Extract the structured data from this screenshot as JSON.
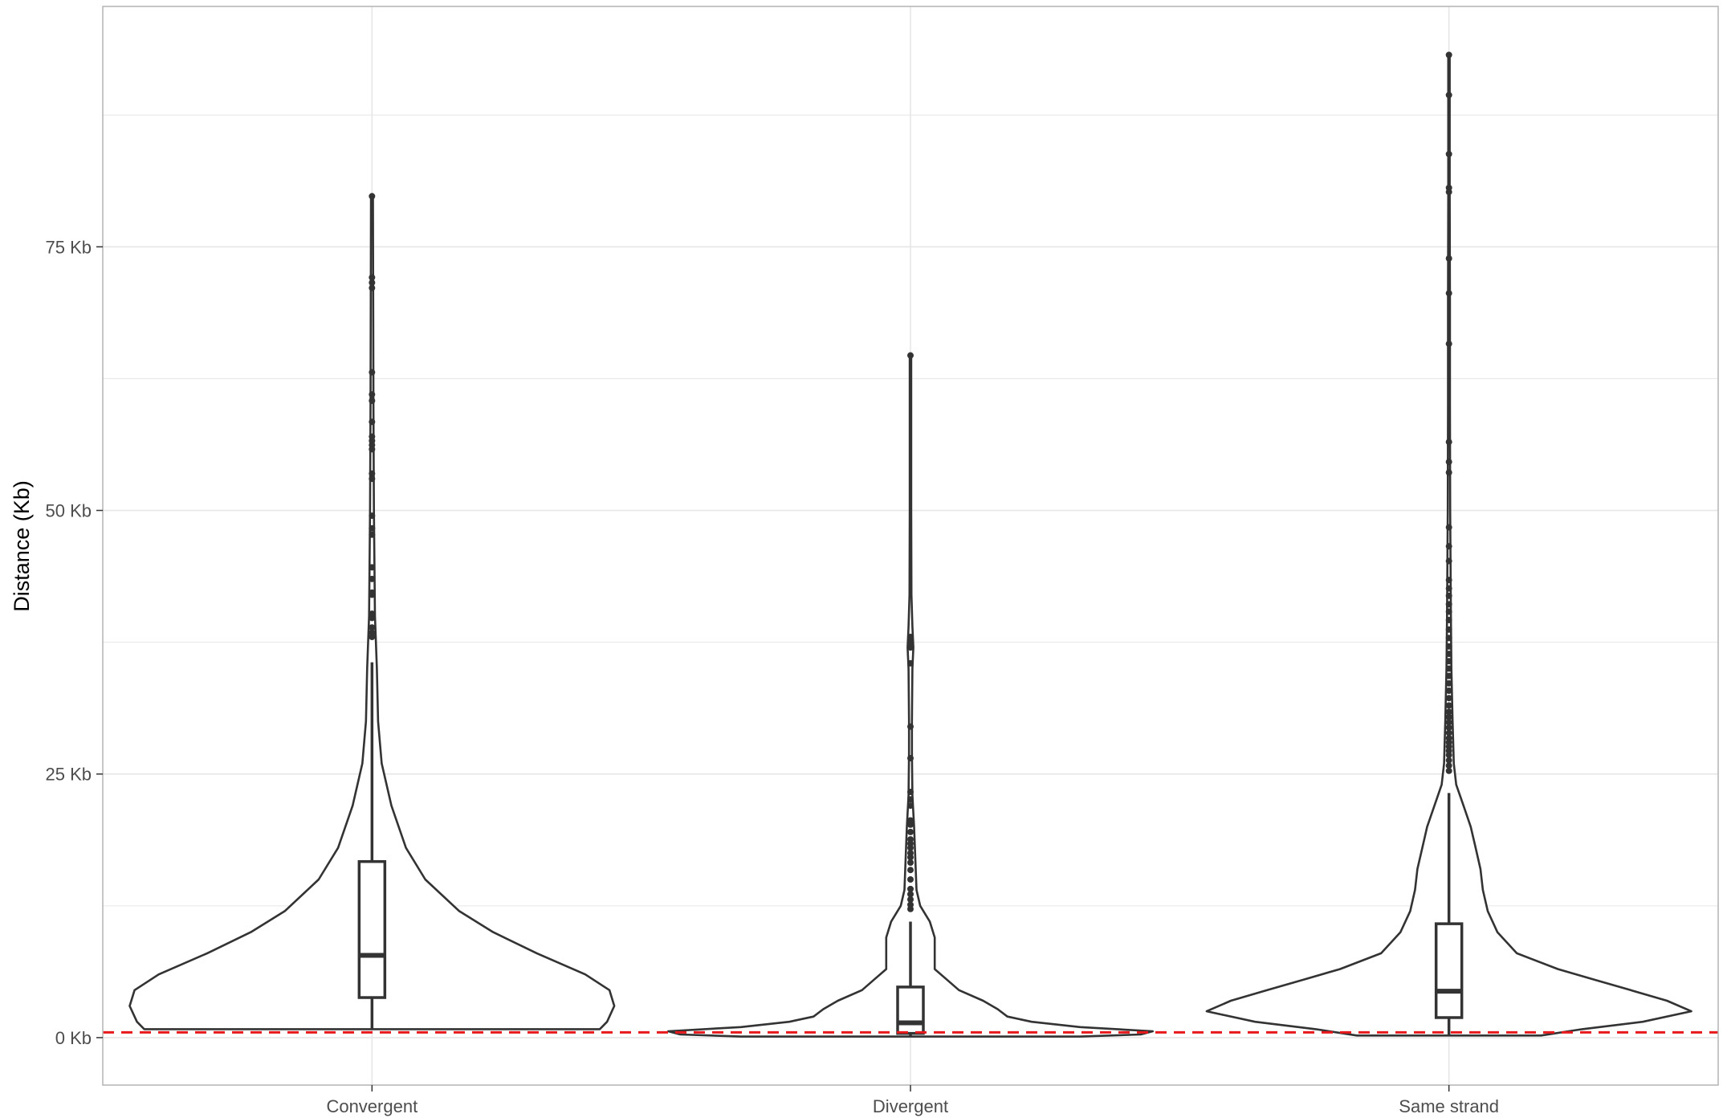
{
  "chart_data": {
    "type": "violin",
    "title": "",
    "xlabel": "",
    "ylabel": "Distance (Kb)",
    "ylim": [
      -4.5,
      97.8
    ],
    "y_ticks": [
      0,
      25,
      50,
      75
    ],
    "y_tick_labels": [
      "0 Kb",
      "25 Kb",
      "50 Kb",
      "75 Kb"
    ],
    "categories": [
      "Convergent",
      "Divergent",
      "Same strand"
    ],
    "grid": true,
    "legend": "none",
    "reference_line": {
      "y": 0.5,
      "color": "#e8191c",
      "style": "dashed"
    },
    "colors": {
      "outline": "#333333",
      "grid": "#e6e6e6",
      "panel_border": "#b3b3b3"
    },
    "groups": [
      {
        "name": "Convergent",
        "box": {
          "q1": 3.8,
          "median": 7.8,
          "q3": 16.7,
          "whisker_low": 0.8,
          "whisker_high": 35.6
        },
        "violin_range": [
          0.8,
          79.8
        ],
        "density": [
          [
            0.8,
            0.94
          ],
          [
            1.5,
            0.97
          ],
          [
            3,
            1.0
          ],
          [
            4.5,
            0.98
          ],
          [
            6,
            0.88
          ],
          [
            8,
            0.68
          ],
          [
            10,
            0.5
          ],
          [
            12,
            0.36
          ],
          [
            15,
            0.22
          ],
          [
            18,
            0.14
          ],
          [
            22,
            0.08
          ],
          [
            26,
            0.04
          ],
          [
            30,
            0.025
          ],
          [
            35,
            0.02
          ],
          [
            40,
            0.012
          ],
          [
            50,
            0.008
          ],
          [
            60,
            0.006
          ],
          [
            70,
            0.005
          ],
          [
            79.8,
            0.004
          ]
        ],
        "outliers": [
          38,
          38.4,
          38.9,
          39.8,
          40.2,
          42,
          42.2,
          43.5,
          44.6,
          47.7,
          48.3,
          49.5,
          53,
          53.5,
          55.8,
          56.2,
          56.6,
          57,
          58.4,
          60.4,
          61,
          63.1,
          71.1,
          71.6,
          72.1,
          79.8
        ]
      },
      {
        "name": "Divergent",
        "box": {
          "q1": 0.4,
          "median": 1.4,
          "q3": 4.8,
          "whisker_low": 0.1,
          "whisker_high": 11
        },
        "violin_range": [
          0.1,
          64.7
        ],
        "density": [
          [
            0.1,
            0.7
          ],
          [
            0.3,
            0.95
          ],
          [
            0.6,
            1.0
          ],
          [
            1,
            0.7
          ],
          [
            1.5,
            0.5
          ],
          [
            2,
            0.4
          ],
          [
            2.7,
            0.36
          ],
          [
            3.5,
            0.3
          ],
          [
            4.5,
            0.2
          ],
          [
            5.5,
            0.15
          ],
          [
            6.5,
            0.1
          ],
          [
            8,
            0.1
          ],
          [
            9.5,
            0.1
          ],
          [
            11,
            0.08
          ],
          [
            12.5,
            0.04
          ],
          [
            14,
            0.025
          ],
          [
            17,
            0.02
          ],
          [
            20,
            0.015
          ],
          [
            23,
            0.008
          ],
          [
            27,
            0.006
          ],
          [
            30,
            0.006
          ],
          [
            35,
            0.008
          ],
          [
            37,
            0.012
          ],
          [
            39,
            0.008
          ],
          [
            42,
            0.004
          ],
          [
            50,
            0.003
          ],
          [
            64.7,
            0.003
          ]
        ],
        "outliers": [
          12.2,
          12.6,
          13.1,
          13.6,
          14.1,
          15,
          15.9,
          16.6,
          17.1,
          17.5,
          18,
          18.4,
          18.8,
          19.5,
          20.2,
          20.6,
          22,
          22.6,
          23.3,
          26.5,
          29.5,
          35.5,
          37,
          37.5,
          38,
          64.7
        ]
      },
      {
        "name": "Same strand",
        "box": {
          "q1": 1.9,
          "median": 4.4,
          "q3": 10.8,
          "whisker_low": 0.2,
          "whisker_high": 23.2
        },
        "violin_range": [
          0.2,
          93.2
        ],
        "density": [
          [
            0.2,
            0.38
          ],
          [
            0.8,
            0.55
          ],
          [
            1.5,
            0.8
          ],
          [
            2.5,
            1.0
          ],
          [
            3.5,
            0.9
          ],
          [
            4.5,
            0.75
          ],
          [
            5.5,
            0.6
          ],
          [
            6.5,
            0.45
          ],
          [
            8,
            0.28
          ],
          [
            10,
            0.2
          ],
          [
            12,
            0.16
          ],
          [
            14,
            0.14
          ],
          [
            16,
            0.13
          ],
          [
            18,
            0.11
          ],
          [
            20,
            0.09
          ],
          [
            22,
            0.06
          ],
          [
            24,
            0.03
          ],
          [
            26,
            0.02
          ],
          [
            30,
            0.015
          ],
          [
            35,
            0.01
          ],
          [
            40,
            0.008
          ],
          [
            50,
            0.005
          ],
          [
            60,
            0.004
          ],
          [
            70,
            0.004
          ],
          [
            80,
            0.003
          ],
          [
            93.2,
            0.003
          ]
        ],
        "outliers": [
          25.3,
          25.8,
          26.3,
          26.8,
          27.2,
          27.6,
          28,
          28.4,
          28.9,
          29.4,
          29.9,
          30.4,
          30.9,
          31.5,
          32.2,
          32.9,
          33.6,
          34.3,
          35,
          35.7,
          36.4,
          37.1,
          37.9,
          38.7,
          39.6,
          40.4,
          41.1,
          41.9,
          42.6,
          43.4,
          45.2,
          46.6,
          48.4,
          53.6,
          54.6,
          56.5,
          65.8,
          70.6,
          73.9,
          80.2,
          80.6,
          83.8,
          89.4,
          93.2
        ]
      }
    ]
  }
}
